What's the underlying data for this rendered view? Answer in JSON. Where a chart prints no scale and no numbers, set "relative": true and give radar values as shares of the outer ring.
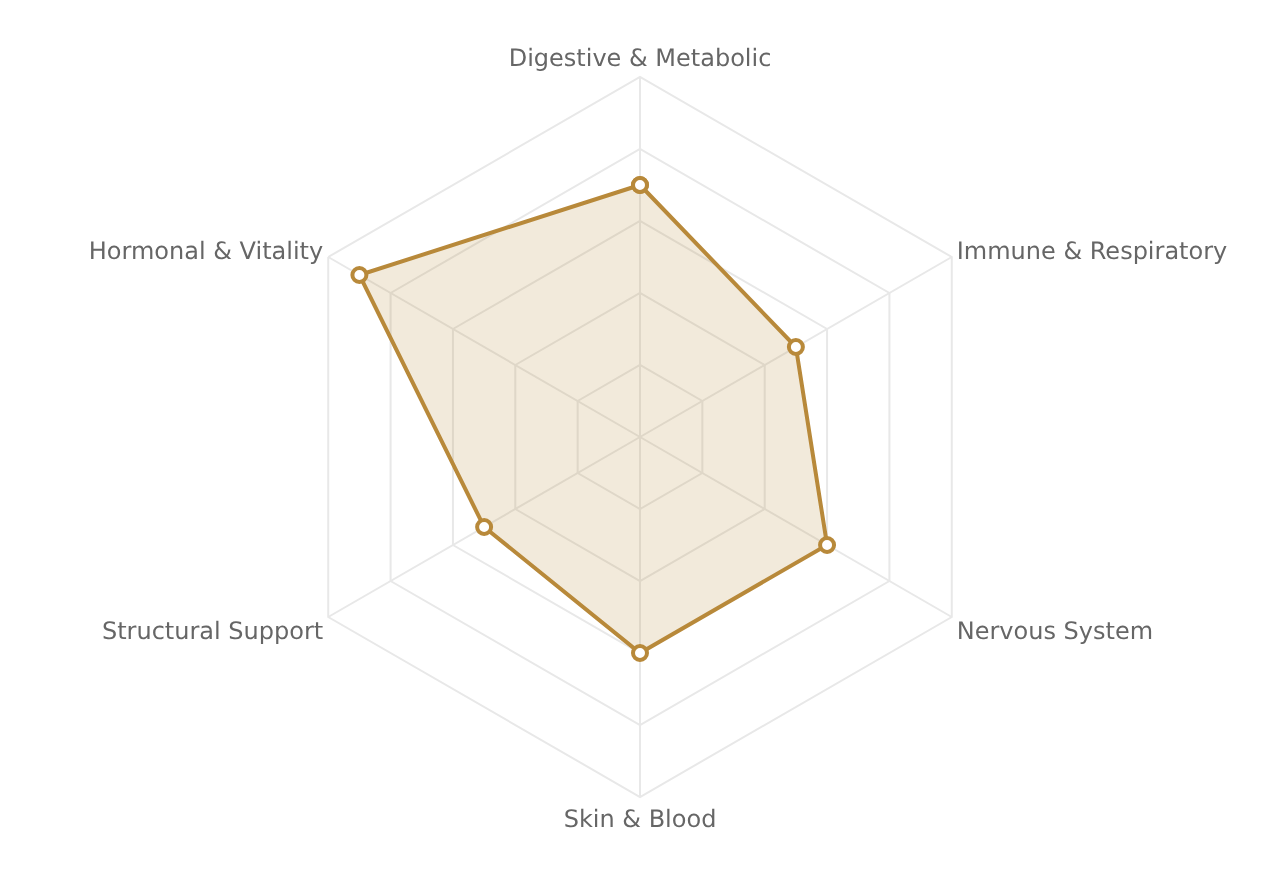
{
  "chart_data": {
    "type": "radar",
    "relative": true,
    "categories": [
      "Digestive & Metabolic",
      "Immune & Respiratory",
      "Nervous System",
      "Skin & Blood",
      "Structural Support",
      "Hormonal & Vitality"
    ],
    "series": [
      {
        "color": "#b8893a",
        "values": [
          0.7,
          0.5,
          0.6,
          0.6,
          0.5,
          0.9
        ]
      }
    ],
    "grid": true,
    "marker": "circle",
    "line_style": "solid"
  }
}
